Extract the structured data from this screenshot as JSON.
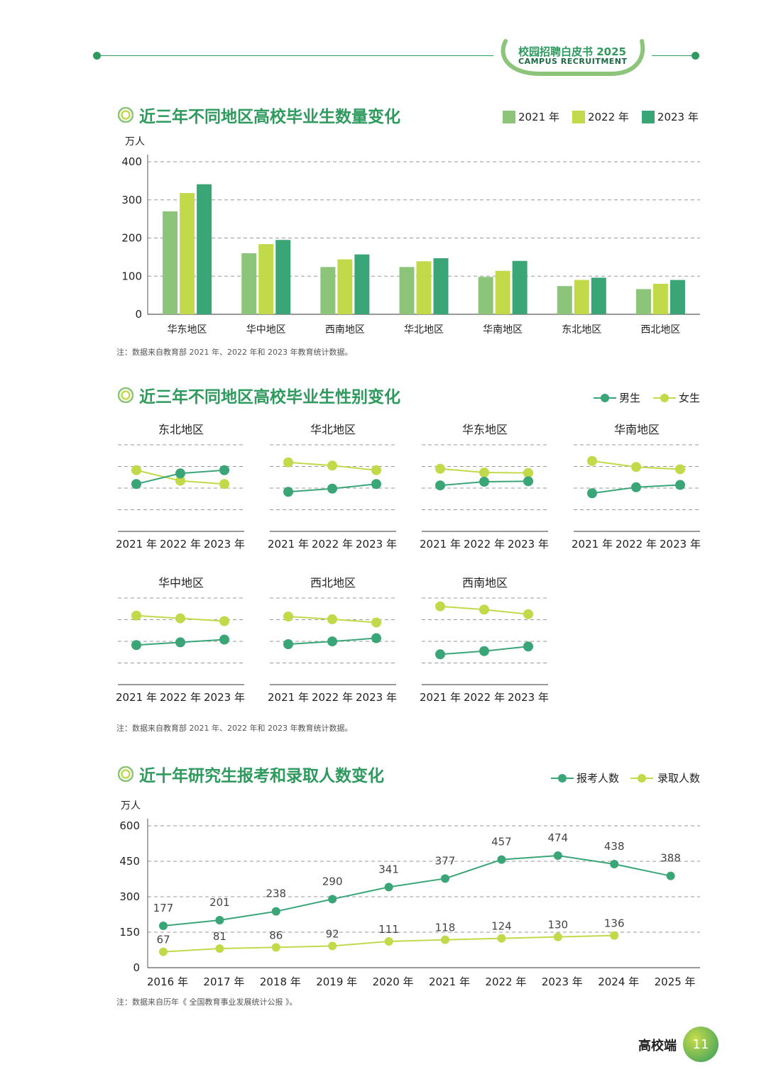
{
  "header": {
    "title": "校园招聘白皮书 2025",
    "subtitle": "CAMPUS RECRUITMENT"
  },
  "colors": {
    "c2021": "#8cc47a",
    "c2022": "#c2d94a",
    "c2023": "#3aa678",
    "male": "#3aa678",
    "female": "#c2d94a"
  },
  "section1": {
    "title": "近三年不同地区高校毕业生数量变化",
    "note": "注：数据来自教育部 2021 年、2022 年和 2023 年教育统计数据。"
  },
  "section2": {
    "title": "近三年不同地区高校毕业生性别变化",
    "note": "注：数据来自教育部 2021 年、2022 年和 2023 年教育统计数据。"
  },
  "section3": {
    "title": "近十年研究生报考和录取人数变化",
    "note": "注：数据来自历年《 全国教育事业发展统计公报 》。"
  },
  "footer": {
    "label": "高校端",
    "page": "11"
  },
  "chart_data": [
    {
      "type": "bar",
      "ylabel": "万人",
      "ylim": [
        0,
        400
      ],
      "yticks": [
        0,
        100,
        200,
        300,
        400
      ],
      "grid": true,
      "legend": "top-right",
      "categories": [
        "华东地区",
        "华中地区",
        "西南地区",
        "华北地区",
        "华南地区",
        "东北地区",
        "西北地区"
      ],
      "series": [
        {
          "name": "2021 年",
          "values": [
            270,
            160,
            124,
            124,
            98,
            74,
            66
          ]
        },
        {
          "name": "2022 年",
          "values": [
            318,
            184,
            144,
            139,
            114,
            90,
            80
          ]
        },
        {
          "name": "2023 年",
          "values": [
            341,
            195,
            157,
            147,
            140,
            96,
            90
          ]
        }
      ]
    },
    {
      "type": "line",
      "legend": "top-right",
      "series_names": [
        "男生",
        "女生"
      ],
      "x": [
        "2021 年",
        "2022 年",
        "2023 年"
      ],
      "panels": [
        {
          "title": "东北地区",
          "male": [
            48.5,
            50.8,
            51.5
          ],
          "female": [
            51.5,
            49.2,
            48.5
          ]
        },
        {
          "title": "华北地区",
          "male": [
            46.8,
            47.5,
            48.5
          ],
          "female": [
            53.2,
            52.5,
            51.5
          ]
        },
        {
          "title": "华东地区",
          "male": [
            48.2,
            49.0,
            49.1
          ],
          "female": [
            51.8,
            51.0,
            50.9
          ]
        },
        {
          "title": "华南地区",
          "male": [
            46.5,
            47.8,
            48.3
          ],
          "female": [
            53.5,
            52.2,
            51.7
          ]
        },
        {
          "title": "华中地区",
          "male": [
            46.8,
            47.4,
            48.0
          ],
          "female": [
            53.2,
            52.6,
            52.0
          ]
        },
        {
          "title": "西北地区",
          "male": [
            47.0,
            47.6,
            48.3
          ],
          "female": [
            53.0,
            52.4,
            51.7
          ]
        },
        {
          "title": "西南地区",
          "male": [
            44.8,
            45.5,
            46.5
          ],
          "female": [
            55.2,
            54.5,
            53.5
          ]
        }
      ]
    },
    {
      "type": "line",
      "ylabel": "万人",
      "ylim": [
        0,
        600
      ],
      "yticks": [
        0,
        150,
        300,
        450,
        600
      ],
      "grid": true,
      "legend": "top-right",
      "x": [
        "2016 年",
        "2017 年",
        "2018 年",
        "2019 年",
        "2020 年",
        "2021 年",
        "2022 年",
        "2023 年",
        "2024 年",
        "2025 年"
      ],
      "series": [
        {
          "name": "报考人数",
          "values": [
            177,
            201,
            238,
            290,
            341,
            377,
            457,
            474,
            438,
            388
          ]
        },
        {
          "name": "录取人数",
          "values": [
            67,
            81,
            86,
            92,
            111,
            118,
            124,
            130,
            136,
            null
          ]
        }
      ]
    }
  ]
}
